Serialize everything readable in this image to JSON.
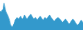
{
  "chart_data": {
    "type": "area",
    "values": [
      88,
      85,
      90,
      92,
      108,
      98,
      88,
      82,
      78,
      72,
      65,
      55,
      50,
      48,
      52,
      58,
      65,
      68,
      72,
      70,
      68,
      72,
      75,
      70,
      68,
      72,
      78,
      75,
      70,
      68,
      72,
      75,
      78,
      80,
      75,
      72,
      68,
      70,
      72,
      68,
      65,
      70,
      72,
      75,
      72,
      68,
      65,
      68,
      72,
      70,
      68,
      72,
      75,
      78,
      75,
      70,
      68,
      65,
      62,
      65,
      68,
      70,
      72,
      70,
      68,
      65,
      62,
      60,
      62,
      65,
      68,
      65,
      62,
      58,
      55,
      58,
      62,
      65,
      68,
      65,
      62,
      58,
      55,
      52,
      55,
      58,
      62,
      65,
      62,
      58
    ],
    "color": "#3399cc",
    "xlim": [
      0,
      89
    ],
    "ylim": [
      40,
      115
    ],
    "tick_labels": false
  }
}
